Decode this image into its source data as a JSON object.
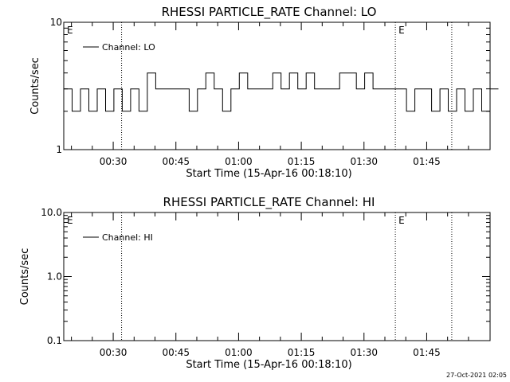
{
  "timestamp": "27-Oct-2021 02:05",
  "chart_data": [
    {
      "type": "line",
      "title": "RHESSI PARTICLE_RATE Channel: LO",
      "xlabel": "Start Time (15-Apr-16 00:18:10)",
      "ylabel": "Counts/sec",
      "yscale": "log",
      "ylim": [
        1,
        10
      ],
      "ytick_labels": [
        "1",
        "10"
      ],
      "xlim": [
        "00:18:10",
        "02:00:10"
      ],
      "xtick_labels": [
        "00:30",
        "00:45",
        "01:00",
        "01:15",
        "01:30",
        "01:45"
      ],
      "grid": false,
      "legend": "top-left",
      "event_markers": [
        {
          "time": "00:18:10",
          "label": "E"
        },
        {
          "time": "00:32:00",
          "label": ""
        },
        {
          "time": "01:37:30",
          "label": "E"
        },
        {
          "time": "01:51:00",
          "label": ""
        }
      ],
      "series": [
        {
          "name": "Channel: LO",
          "color": "#000000",
          "x_minutes_since_0018": [
            0,
            2,
            4,
            6,
            8,
            10,
            12,
            14,
            16,
            18,
            20,
            22,
            24,
            26,
            28,
            30,
            32,
            34,
            36,
            38,
            40,
            42,
            44,
            46,
            48,
            50,
            52,
            54,
            56,
            58,
            60,
            62,
            64,
            66,
            68,
            70,
            72,
            74,
            76,
            78,
            80,
            82,
            84,
            86,
            88,
            90,
            92,
            94,
            96,
            98,
            100,
            102
          ],
          "values": [
            3,
            2,
            3,
            2,
            3,
            2,
            3,
            2,
            3,
            2,
            4,
            3,
            3,
            3,
            3,
            2,
            3,
            4,
            3,
            2,
            3,
            4,
            3,
            3,
            3,
            4,
            3,
            4,
            3,
            4,
            3,
            3,
            3,
            4,
            4,
            3,
            4,
            3,
            3,
            3,
            3,
            2,
            3,
            3,
            2,
            3,
            2,
            3,
            2,
            3,
            2,
            3
          ]
        }
      ]
    },
    {
      "type": "line",
      "title": "RHESSI PARTICLE_RATE Channel: HI",
      "xlabel": "Start Time (15-Apr-16 00:18:10)",
      "ylabel": "Counts/sec",
      "yscale": "log",
      "ylim": [
        0.1,
        10
      ],
      "ytick_labels": [
        "0.1",
        "1.0",
        "10.0"
      ],
      "xlim": [
        "00:18:10",
        "02:00:10"
      ],
      "xtick_labels": [
        "00:30",
        "00:45",
        "01:00",
        "01:15",
        "01:30",
        "01:45"
      ],
      "grid": false,
      "legend": "top-left",
      "event_markers": [
        {
          "time": "00:18:10",
          "label": "E"
        },
        {
          "time": "00:32:00",
          "label": ""
        },
        {
          "time": "01:37:30",
          "label": "E"
        },
        {
          "time": "01:51:00",
          "label": ""
        }
      ],
      "series": [
        {
          "name": "Channel: HI",
          "color": "#000000",
          "values": []
        }
      ]
    }
  ]
}
